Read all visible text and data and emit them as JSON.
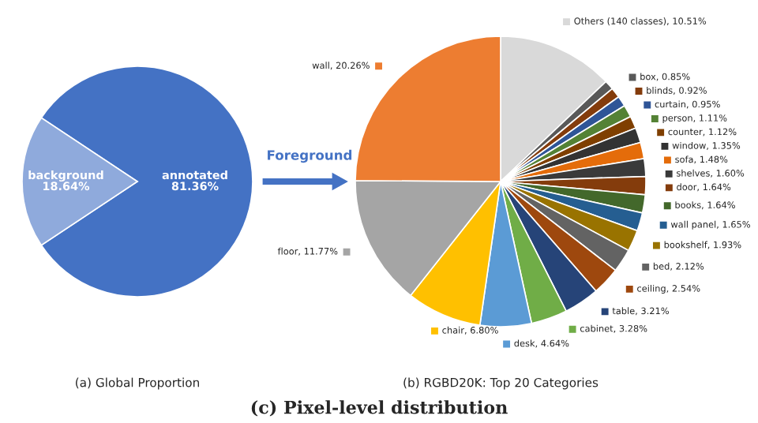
{
  "chart_data": [
    {
      "type": "pie",
      "categories": [
        "annotated",
        "background"
      ],
      "values": [
        81.36,
        18.64
      ],
      "value_labels": [
        "81.36%",
        "18.64%"
      ],
      "colors": [
        "#4472c4",
        "#8faadc"
      ],
      "annotations": [
        "Foreground",
        "(a) Global Proportion",
        "(c) Pixel-level distribution"
      ]
    },
    {
      "type": "pie",
      "categories": [
        "Others (140 classes)",
        "box",
        "blinds",
        "curtain",
        "person",
        "counter",
        "window",
        "sofa",
        "shelves",
        "door",
        "books",
        "wall panel",
        "bookshelf",
        "bed",
        "ceiling",
        "table",
        "cabinet",
        "desk",
        "chair",
        "floor",
        "wall"
      ],
      "values": [
        10.51,
        0.85,
        0.92,
        0.95,
        1.11,
        1.12,
        1.35,
        1.48,
        1.6,
        1.64,
        1.64,
        1.65,
        1.93,
        2.12,
        2.54,
        3.21,
        3.28,
        4.64,
        6.8,
        11.77,
        20.26
      ],
      "value_labels": [
        "10.51%",
        "0.85%",
        "0.92%",
        "0.95%",
        "1.11%",
        "1.12%",
        "1.35%",
        "1.48%",
        "1.60%",
        "1.64%",
        "1.64%",
        "1.65%",
        "1.93%",
        "2.12%",
        "2.54%",
        "3.21%",
        "3.28%",
        "4.64%",
        "6.80%",
        "11.77%",
        "20.26%"
      ],
      "colors": [
        "#d9d9d9",
        "#595959",
        "#843c0c",
        "#2f5597",
        "#548235",
        "#7f3f00",
        "#333333",
        "#e46c0a",
        "#3a3a3a",
        "#843c0c",
        "#43682b",
        "#255e91",
        "#997300",
        "#636363",
        "#9e480e",
        "#264478",
        "#70ad47",
        "#5b9bd5",
        "#ffc000",
        "#a5a5a5",
        "#ed7d31"
      ],
      "annotations": [
        "(b) RGBD20K: Top 20 Categories"
      ],
      "legend": "right"
    }
  ]
}
